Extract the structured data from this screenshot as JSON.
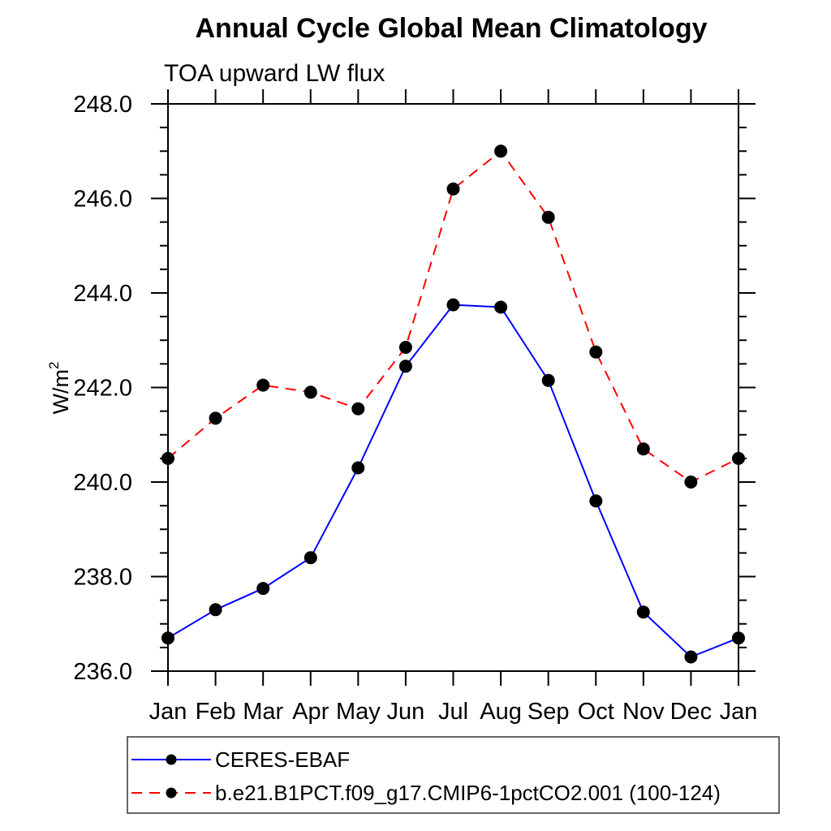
{
  "page": {
    "background_color": "#ffffff"
  },
  "chart_data": {
    "type": "line",
    "title": "Annual Cycle Global Mean Climatology",
    "subtitle": "TOA upward LW flux",
    "ylabel_parts": {
      "base": "W/m",
      "superscript": "2"
    },
    "categories": [
      "Jan",
      "Feb",
      "Mar",
      "Apr",
      "May",
      "Jun",
      "Jul",
      "Aug",
      "Sep",
      "Oct",
      "Nov",
      "Dec",
      "Jan"
    ],
    "ylim": [
      236.0,
      248.0
    ],
    "ytick_interval": 2.0,
    "yminor_interval": 0.5,
    "ytick_labels": [
      "248.0",
      "246.0",
      "244.0",
      "242.0",
      "240.0",
      "238.0",
      "236.0"
    ],
    "grid": false,
    "frame": "box-with-outward-ticks",
    "legend_position": "bottom-left",
    "axis_color": "#000000",
    "marker_shape": "filled-circle",
    "marker_color": "#000000",
    "series": [
      {
        "name": "CERES-EBAF",
        "color": "#0000ff",
        "line_style": "solid",
        "values": [
          236.7,
          237.3,
          237.75,
          238.4,
          240.3,
          242.45,
          243.75,
          243.7,
          242.15,
          239.6,
          237.25,
          236.3,
          236.7
        ]
      },
      {
        "name": "b.e21.B1PCT.f09_g17.CMIP6-1pctCO2.001 (100-124)",
        "color": "#ff0000",
        "line_style": "dashed",
        "values": [
          240.5,
          241.35,
          242.05,
          241.9,
          241.55,
          242.85,
          246.2,
          247.0,
          245.6,
          242.75,
          240.7,
          240.0,
          240.5
        ]
      }
    ]
  }
}
